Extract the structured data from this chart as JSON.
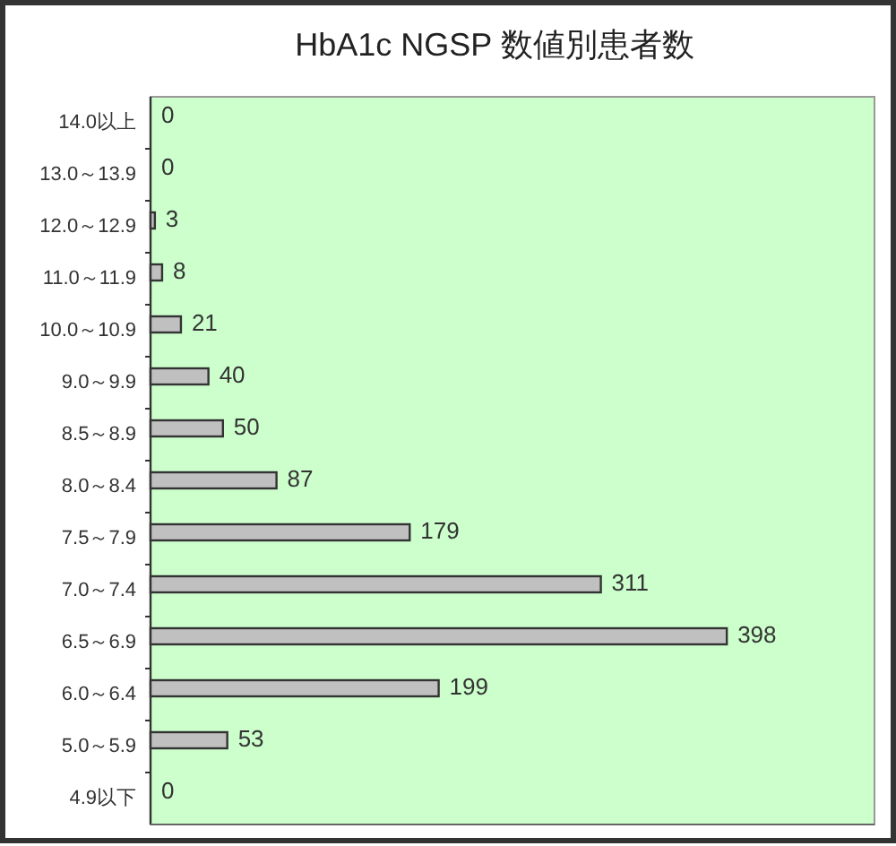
{
  "chart_data": {
    "type": "bar",
    "orientation": "horizontal",
    "title": "HbA1c NGSP 数値別患者数",
    "categories": [
      "14.0以上",
      "13.0～13.9",
      "12.0～12.9",
      "11.0～11.9",
      "10.0～10.9",
      "9.0～9.9",
      "8.5～8.9",
      "8.0～8.4",
      "7.5～7.9",
      "7.0～7.4",
      "6.5～6.9",
      "6.0～6.4",
      "5.0～5.9",
      "4.9以下"
    ],
    "values": [
      0,
      0,
      3,
      8,
      21,
      40,
      50,
      87,
      179,
      311,
      398,
      199,
      53,
      0
    ],
    "color": "#c0c0c0",
    "xlim": [
      0,
      500
    ],
    "data_labels": true,
    "tick_labels": "y"
  }
}
